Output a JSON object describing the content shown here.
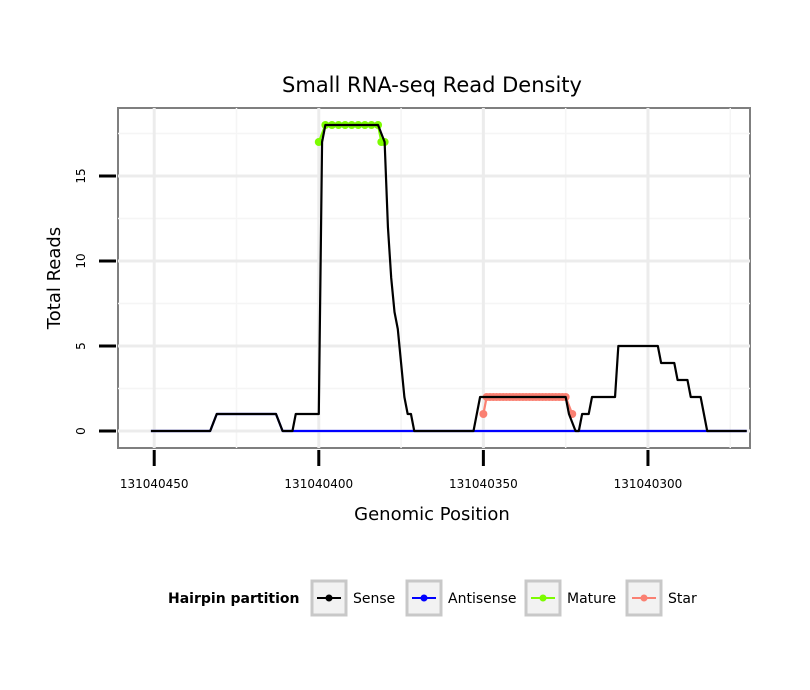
{
  "chart_data": {
    "type": "line",
    "title": "Small RNA-seq Read Density",
    "xlabel": "Genomic Position",
    "ylabel": "Total Reads",
    "xlim": [
      131040461,
      131040269
    ],
    "x_reversed": true,
    "ylim": [
      -1,
      19
    ],
    "xticks": [
      131040450,
      131040400,
      131040350,
      131040300
    ],
    "xtick_labels": [
      "131040450",
      "131040400",
      "131040350",
      "131040300"
    ],
    "yticks": [
      0,
      5,
      10,
      15
    ],
    "ytick_labels": [
      "0",
      "5",
      "10",
      "15"
    ],
    "grid": true,
    "legend": {
      "title": "Hairpin partition",
      "placement": "bottom",
      "entries": [
        {
          "name": "Sense",
          "color": "#000000"
        },
        {
          "name": "Antisense",
          "color": "#0000ff"
        },
        {
          "name": "Mature",
          "color": "#7cfc00"
        },
        {
          "name": "Star",
          "color": "#fa8072"
        }
      ]
    },
    "series": [
      {
        "name": "Sense",
        "color": "#000000",
        "show_points": false,
        "points": [
          [
            131040451,
            0
          ],
          [
            131040433,
            0
          ],
          [
            131040431,
            1
          ],
          [
            131040413,
            1
          ],
          [
            131040411,
            0
          ],
          [
            131040408,
            0
          ],
          [
            131040407,
            1
          ],
          [
            131040400,
            1
          ],
          [
            131040399,
            17
          ],
          [
            131040398,
            18
          ],
          [
            131040382,
            18
          ],
          [
            131040380,
            17
          ],
          [
            131040379,
            12
          ],
          [
            131040378,
            9
          ],
          [
            131040377,
            7
          ],
          [
            131040376,
            6
          ],
          [
            131040375,
            4
          ],
          [
            131040374,
            2
          ],
          [
            131040373,
            1
          ],
          [
            131040372,
            1
          ],
          [
            131040371,
            0
          ],
          [
            131040353,
            0
          ],
          [
            131040352,
            1
          ],
          [
            131040351,
            2
          ],
          [
            131040325,
            2
          ],
          [
            131040324,
            1
          ],
          [
            131040322,
            0
          ],
          [
            131040321,
            0
          ],
          [
            131040320,
            1
          ],
          [
            131040318,
            1
          ],
          [
            131040317,
            2
          ],
          [
            131040310,
            2
          ],
          [
            131040309,
            5
          ],
          [
            131040297,
            5
          ],
          [
            131040296,
            4
          ],
          [
            131040292,
            4
          ],
          [
            131040291,
            3
          ],
          [
            131040288,
            3
          ],
          [
            131040287,
            2
          ],
          [
            131040284,
            2
          ],
          [
            131040282,
            0
          ],
          [
            131040270,
            0
          ]
        ]
      },
      {
        "name": "Antisense",
        "color": "#0000ff",
        "show_points": false,
        "points": [
          [
            131040451,
            0
          ],
          [
            131040433,
            0
          ],
          [
            131040431,
            1
          ],
          [
            131040413,
            1
          ],
          [
            131040411,
            0
          ],
          [
            131040270,
            0
          ]
        ]
      },
      {
        "name": "Mature",
        "color": "#7cfc00",
        "show_points": true,
        "points": [
          [
            131040400,
            17
          ],
          [
            131040398,
            18
          ],
          [
            131040396,
            18
          ],
          [
            131040394,
            18
          ],
          [
            131040392,
            18
          ],
          [
            131040390,
            18
          ],
          [
            131040388,
            18
          ],
          [
            131040386,
            18
          ],
          [
            131040384,
            18
          ],
          [
            131040382,
            18
          ],
          [
            131040381,
            17
          ],
          [
            131040380,
            17
          ]
        ]
      },
      {
        "name": "Star",
        "color": "#fa8072",
        "show_points": true,
        "points": [
          [
            131040350,
            1
          ],
          [
            131040349,
            2
          ],
          [
            131040348,
            2
          ],
          [
            131040347,
            2
          ],
          [
            131040346,
            2
          ],
          [
            131040345,
            2
          ],
          [
            131040344,
            2
          ],
          [
            131040343,
            2
          ],
          [
            131040342,
            2
          ],
          [
            131040341,
            2
          ],
          [
            131040340,
            2
          ],
          [
            131040339,
            2
          ],
          [
            131040338,
            2
          ],
          [
            131040337,
            2
          ],
          [
            131040336,
            2
          ],
          [
            131040335,
            2
          ],
          [
            131040334,
            2
          ],
          [
            131040333,
            2
          ],
          [
            131040332,
            2
          ],
          [
            131040331,
            2
          ],
          [
            131040330,
            2
          ],
          [
            131040329,
            2
          ],
          [
            131040328,
            2
          ],
          [
            131040327,
            2
          ],
          [
            131040326,
            2
          ],
          [
            131040325,
            2
          ],
          [
            131040323,
            1
          ]
        ]
      }
    ]
  }
}
